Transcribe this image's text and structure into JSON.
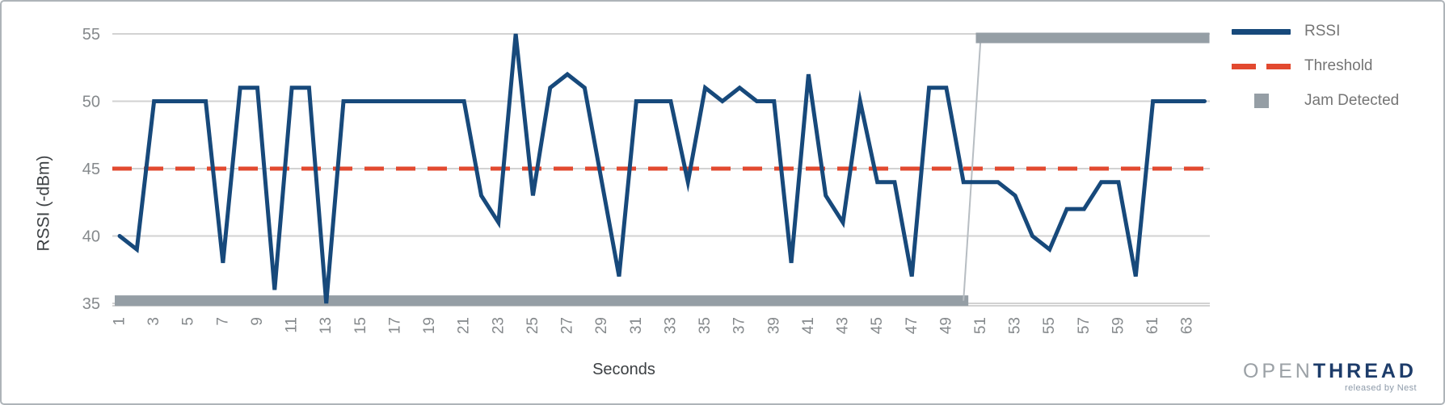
{
  "chart_data": {
    "type": "line",
    "title": "",
    "xlabel": "Seconds",
    "ylabel": "RSSI (-dBm)",
    "x_range": [
      1,
      64
    ],
    "ylim": [
      35,
      55
    ],
    "grid": true,
    "legend_position": "right",
    "x": [
      1,
      2,
      3,
      4,
      5,
      6,
      7,
      8,
      9,
      10,
      11,
      12,
      13,
      14,
      15,
      16,
      17,
      18,
      19,
      20,
      21,
      22,
      23,
      24,
      25,
      26,
      27,
      28,
      29,
      30,
      31,
      32,
      33,
      34,
      35,
      36,
      37,
      38,
      39,
      40,
      41,
      42,
      43,
      44,
      45,
      46,
      47,
      48,
      49,
      50,
      51,
      52,
      53,
      54,
      55,
      56,
      57,
      58,
      59,
      60,
      61,
      62,
      63,
      64
    ],
    "xticks": [
      1,
      3,
      5,
      7,
      9,
      11,
      13,
      15,
      17,
      19,
      21,
      23,
      25,
      27,
      29,
      31,
      33,
      35,
      37,
      39,
      41,
      43,
      45,
      47,
      49,
      51,
      53,
      55,
      57,
      59,
      61,
      63
    ],
    "yticks": [
      35,
      40,
      45,
      50,
      55
    ],
    "series": [
      {
        "name": "RSSI",
        "type": "line",
        "color": "#17497B",
        "values": [
          40,
          39,
          50,
          50,
          50,
          50,
          38,
          51,
          51,
          36,
          51,
          51,
          35,
          50,
          50,
          50,
          50,
          50,
          50,
          50,
          50,
          43,
          41,
          55,
          43,
          51,
          52,
          51,
          44,
          37,
          50,
          50,
          50,
          44,
          51,
          50,
          51,
          50,
          50,
          38,
          52,
          43,
          41,
          50,
          44,
          44,
          37,
          51,
          51,
          44,
          44,
          44,
          43,
          40,
          39,
          42,
          42,
          44,
          44,
          37,
          50,
          50,
          50,
          50
        ]
      },
      {
        "name": "Threshold",
        "type": "dashed-line",
        "color": "#E2492F",
        "value": 45
      },
      {
        "name": "Jam Detected",
        "type": "step-band",
        "color": "#959EA5",
        "marker": "square",
        "segments": [
          {
            "x_start": 1,
            "x_end": 50,
            "value": 35.2
          },
          {
            "x_start": 51,
            "x_end": 64,
            "value": 54.7
          }
        ]
      }
    ]
  },
  "legend": {
    "items": [
      {
        "label": "RSSI"
      },
      {
        "label": "Threshold"
      },
      {
        "label": "Jam Detected"
      }
    ]
  },
  "logo": {
    "part1": "OPEN",
    "part2": "THREAD",
    "tagline": "released by Nest"
  },
  "colors": {
    "rssi": "#17497B",
    "threshold": "#E2492F",
    "jam": "#959EA5",
    "jam_connector": "#B7BDC2",
    "grid": "#D2D2D2",
    "tick_label": "#85898C",
    "axis_title": "#3C4043",
    "legend_text": "#757575",
    "logo_open": "#9BA1A6",
    "logo_thread": "#1D3C6A",
    "frame_border": "#AEB4B9"
  }
}
